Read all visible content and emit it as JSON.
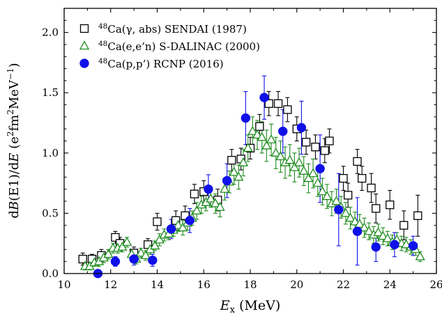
{
  "chart_data": {
    "type": "scatter",
    "xlabel": {
      "var": "E",
      "sub": "x",
      "unit": " (MeV)"
    },
    "ylabel": {
      "pre": "d",
      "var1": "B",
      "mid": "(E1)/d",
      "var2": "E",
      "unit_open": " (e",
      "unit_fm": "fm",
      "unit_mev": "MeV",
      "unit_close": ")",
      "sup2": "2",
      "supm1": "−1"
    },
    "xlim": [
      10,
      26
    ],
    "ylim": [
      0,
      2.2
    ],
    "xticks": [
      "10",
      "12",
      "14",
      "16",
      "18",
      "20",
      "22",
      "24",
      "26"
    ],
    "yticks": [
      "0.0",
      "0.5",
      "1.0",
      "1.5",
      "2.0"
    ],
    "legend_position": "top-left",
    "series": [
      {
        "name": "SENDAI (1987)",
        "legend": {
          "mass": "48",
          "label": "Ca(γ, abs) SENDAI (1987)"
        },
        "marker": "open-square",
        "color": "#000000",
        "points": [
          [
            10.8,
            0.12,
            0.05
          ],
          [
            11.2,
            0.12,
            0.04
          ],
          [
            11.6,
            0.15,
            0.05
          ],
          [
            12.2,
            0.3,
            0.05
          ],
          [
            12.4,
            0.25,
            0.05
          ],
          [
            13.0,
            0.17,
            0.05
          ],
          [
            13.6,
            0.24,
            0.05
          ],
          [
            14.0,
            0.43,
            0.07
          ],
          [
            14.8,
            0.44,
            0.08
          ],
          [
            15.2,
            0.48,
            0.08
          ],
          [
            15.6,
            0.66,
            0.08
          ],
          [
            16.0,
            0.68,
            0.09
          ],
          [
            16.6,
            0.61,
            0.09
          ],
          [
            17.2,
            0.94,
            0.09
          ],
          [
            17.6,
            0.95,
            0.09
          ],
          [
            18.0,
            1.04,
            0.09
          ],
          [
            18.4,
            1.22,
            0.1
          ],
          [
            18.8,
            1.41,
            0.1
          ],
          [
            19.2,
            1.41,
            0.1
          ],
          [
            19.6,
            1.36,
            0.1
          ],
          [
            20.0,
            1.2,
            0.1
          ],
          [
            20.4,
            1.09,
            0.1
          ],
          [
            20.8,
            1.05,
            0.1
          ],
          [
            21.2,
            1.02,
            0.1
          ],
          [
            21.4,
            1.1,
            0.1
          ],
          [
            22.0,
            0.79,
            0.1
          ],
          [
            22.2,
            0.65,
            0.1
          ],
          [
            22.6,
            0.93,
            0.1
          ],
          [
            22.8,
            0.79,
            0.1
          ],
          [
            23.2,
            0.71,
            0.12
          ],
          [
            23.4,
            0.54,
            0.12
          ],
          [
            24.0,
            0.57,
            0.12
          ],
          [
            24.6,
            0.4,
            0.12
          ],
          [
            25.2,
            0.48,
            0.17
          ]
        ]
      },
      {
        "name": "S-DALINAC (2000)",
        "legend": {
          "mass": "48",
          "label": "Ca(e,e’n) S-DALINAC (2000)"
        },
        "marker": "open-triangle",
        "color": "#1e8c1e",
        "points": [
          [
            10.9,
            0.06,
            0.03
          ],
          [
            11.1,
            0.06,
            0.03
          ],
          [
            11.3,
            0.09,
            0.03
          ],
          [
            11.5,
            0.1,
            0.04
          ],
          [
            11.7,
            0.13,
            0.04
          ],
          [
            11.9,
            0.16,
            0.04
          ],
          [
            12.1,
            0.21,
            0.04
          ],
          [
            12.3,
            0.21,
            0.04
          ],
          [
            12.5,
            0.22,
            0.04
          ],
          [
            12.7,
            0.26,
            0.04
          ],
          [
            12.9,
            0.16,
            0.04
          ],
          [
            13.1,
            0.12,
            0.04
          ],
          [
            13.3,
            0.17,
            0.04
          ],
          [
            13.5,
            0.15,
            0.04
          ],
          [
            13.7,
            0.2,
            0.04
          ],
          [
            13.9,
            0.23,
            0.04
          ],
          [
            14.1,
            0.28,
            0.05
          ],
          [
            14.3,
            0.32,
            0.05
          ],
          [
            14.5,
            0.33,
            0.05
          ],
          [
            14.7,
            0.36,
            0.05
          ],
          [
            14.9,
            0.4,
            0.05
          ],
          [
            15.1,
            0.38,
            0.06
          ],
          [
            15.3,
            0.42,
            0.06
          ],
          [
            15.5,
            0.46,
            0.06
          ],
          [
            15.7,
            0.52,
            0.07
          ],
          [
            15.9,
            0.57,
            0.07
          ],
          [
            16.1,
            0.59,
            0.07
          ],
          [
            16.3,
            0.62,
            0.07
          ],
          [
            16.5,
            0.58,
            0.08
          ],
          [
            16.7,
            0.55,
            0.08
          ],
          [
            16.9,
            0.7,
            0.09
          ],
          [
            17.1,
            0.76,
            0.09
          ],
          [
            17.3,
            0.84,
            0.1
          ],
          [
            17.5,
            0.8,
            0.1
          ],
          [
            17.7,
            0.92,
            0.11
          ],
          [
            17.9,
            1.04,
            0.11
          ],
          [
            18.1,
            1.18,
            0.12
          ],
          [
            18.3,
            1.15,
            0.12
          ],
          [
            18.5,
            1.13,
            0.13
          ],
          [
            18.7,
            1.06,
            0.13
          ],
          [
            18.9,
            1.11,
            0.13
          ],
          [
            19.1,
            1.0,
            0.13
          ],
          [
            19.3,
            0.97,
            0.13
          ],
          [
            19.5,
            0.92,
            0.13
          ],
          [
            19.7,
            0.94,
            0.13
          ],
          [
            19.9,
            0.88,
            0.12
          ],
          [
            20.1,
            0.92,
            0.12
          ],
          [
            20.3,
            0.85,
            0.12
          ],
          [
            20.5,
            0.79,
            0.12
          ],
          [
            20.7,
            0.83,
            0.12
          ],
          [
            20.9,
            0.75,
            0.11
          ],
          [
            21.1,
            0.68,
            0.11
          ],
          [
            21.3,
            0.64,
            0.1
          ],
          [
            21.5,
            0.58,
            0.1
          ],
          [
            21.7,
            0.6,
            0.1
          ],
          [
            21.9,
            0.55,
            0.09
          ],
          [
            22.1,
            0.5,
            0.09
          ],
          [
            22.3,
            0.46,
            0.09
          ],
          [
            22.5,
            0.43,
            0.08
          ],
          [
            22.7,
            0.41,
            0.08
          ],
          [
            22.9,
            0.38,
            0.08
          ],
          [
            23.1,
            0.35,
            0.07
          ],
          [
            23.3,
            0.32,
            0.07
          ],
          [
            23.5,
            0.34,
            0.07
          ],
          [
            23.7,
            0.31,
            0.07
          ],
          [
            23.9,
            0.29,
            0.06
          ],
          [
            24.1,
            0.26,
            0.06
          ],
          [
            24.3,
            0.28,
            0.06
          ],
          [
            24.5,
            0.25,
            0.06
          ],
          [
            24.7,
            0.24,
            0.06
          ],
          [
            24.9,
            0.22,
            0.06
          ],
          [
            25.1,
            0.2,
            0.05
          ],
          [
            25.3,
            0.14,
            0.04
          ]
        ]
      },
      {
        "name": "RCNP (2016)",
        "legend": {
          "mass": "48",
          "label": "Ca(p,p’) RCNP (2016)"
        },
        "marker": "filled-circle",
        "color": "#1010e8",
        "points": [
          [
            11.45,
            0.0,
            0.02
          ],
          [
            12.2,
            0.1,
            0.04
          ],
          [
            13.0,
            0.12,
            0.05
          ],
          [
            13.8,
            0.11,
            0.05
          ],
          [
            14.6,
            0.37,
            0.08
          ],
          [
            15.4,
            0.44,
            0.1
          ],
          [
            16.2,
            0.7,
            0.12
          ],
          [
            17.0,
            0.77,
            0.14
          ],
          [
            17.8,
            1.29,
            0.22
          ],
          [
            18.6,
            1.46,
            0.18
          ],
          [
            19.4,
            1.18,
            0.18
          ],
          [
            20.2,
            1.21,
            0.22
          ],
          [
            21.0,
            0.87,
            0.28
          ],
          [
            21.8,
            0.53,
            0.3
          ],
          [
            22.6,
            0.35,
            0.28
          ],
          [
            23.4,
            0.22,
            0.12
          ],
          [
            24.2,
            0.24,
            0.1
          ],
          [
            25.0,
            0.23,
            0.08
          ]
        ]
      }
    ]
  }
}
